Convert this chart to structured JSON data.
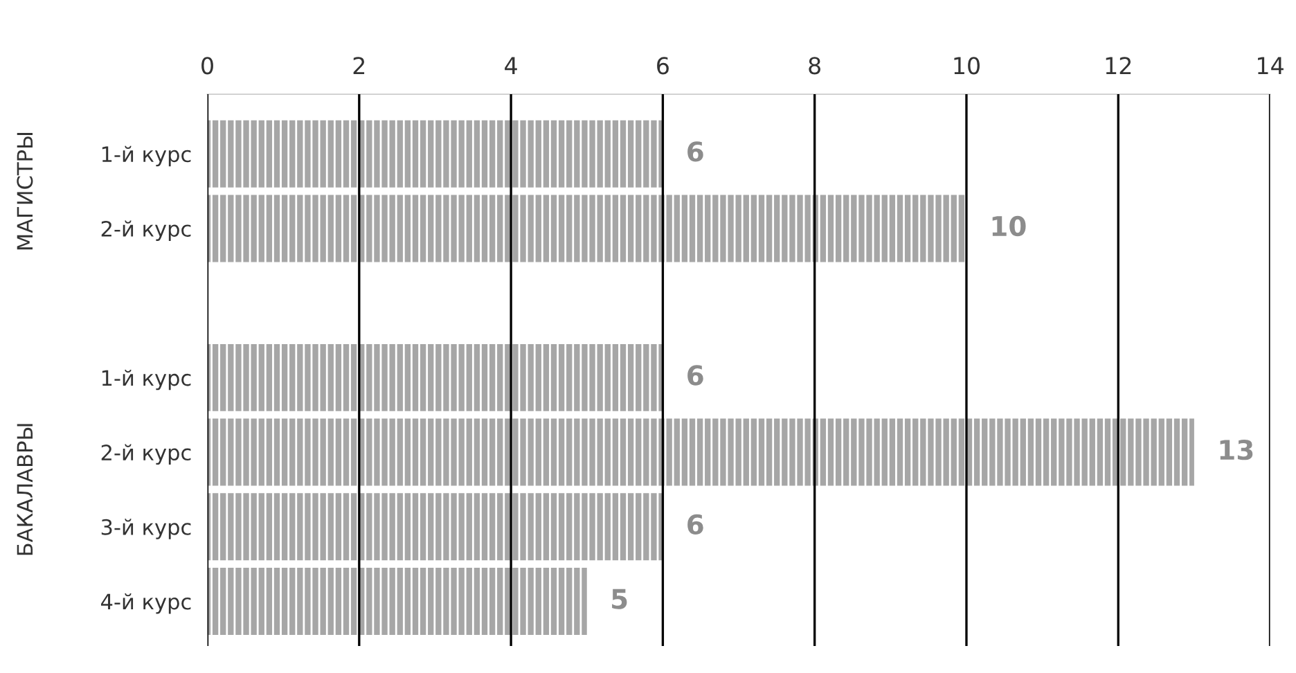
{
  "chart_data": {
    "type": "bar",
    "orientation": "horizontal",
    "categories": [
      "1-й курс",
      "2-й курс",
      null,
      "1-й курс",
      "2-й курс",
      "3-й курс",
      "4-й курс"
    ],
    "values": [
      6,
      10,
      null,
      6,
      13,
      6,
      5
    ],
    "color": "#a6a6a6",
    "xlim": [
      0,
      14
    ],
    "xticks": [
      0,
      2,
      4,
      6,
      8,
      10,
      12,
      14
    ],
    "grid": "x",
    "data_labels": true,
    "annotations": [
      "МАГИСТРЫ",
      "БАКАЛАВРЫ"
    ]
  }
}
